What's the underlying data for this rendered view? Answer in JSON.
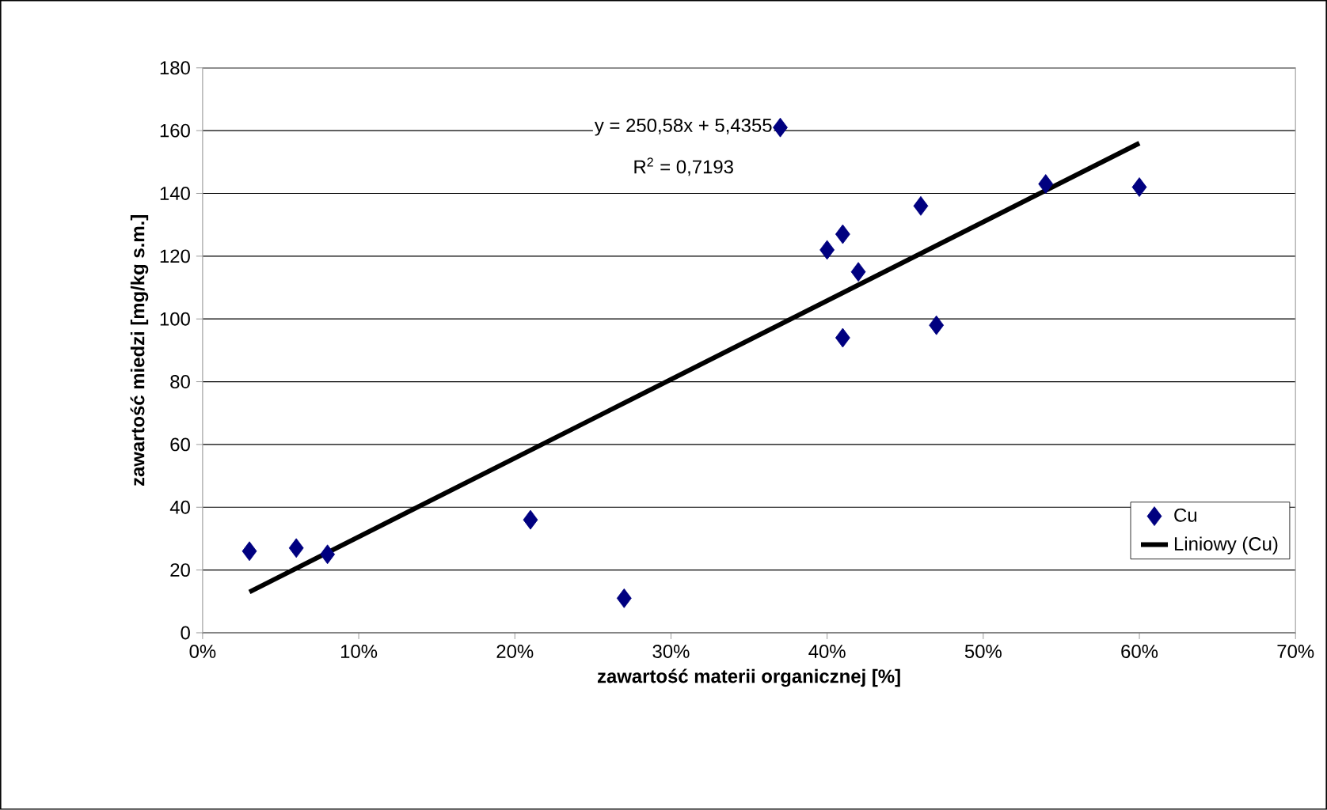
{
  "chart_data": {
    "type": "scatter",
    "xlabel": "zawartość materii organicznej [%]",
    "ylabel": "zawartość miedzi [mg/kg s.m.]",
    "xlim": [
      0,
      70
    ],
    "ylim": [
      0,
      180
    ],
    "xticks": [
      {
        "value": 0,
        "label": "0%"
      },
      {
        "value": 10,
        "label": "10%"
      },
      {
        "value": 20,
        "label": "20%"
      },
      {
        "value": 30,
        "label": "30%"
      },
      {
        "value": 40,
        "label": "40%"
      },
      {
        "value": 50,
        "label": "50%"
      },
      {
        "value": 60,
        "label": "60%"
      },
      {
        "value": 70,
        "label": "70%"
      }
    ],
    "yticks": [
      0,
      20,
      40,
      60,
      80,
      100,
      120,
      140,
      160,
      180
    ],
    "grid": "y",
    "legend": "bottom right",
    "series": [
      {
        "name": "Cu",
        "marker": "diamond",
        "color": "#000080",
        "x": [
          3,
          6,
          8,
          21,
          27,
          37,
          40,
          41,
          42,
          41,
          46,
          47,
          54,
          60
        ],
        "values": [
          26,
          27,
          25,
          36,
          11,
          161,
          122,
          127,
          115,
          94,
          136,
          98,
          143,
          142
        ]
      },
      {
        "name": "Liniowy (Cu)",
        "type": "line",
        "marker": "none",
        "line_style": "solid",
        "color": "#000000",
        "x": [
          3,
          60
        ],
        "values": [
          13,
          156
        ]
      }
    ],
    "annotations": [
      "y = 250,58x + 5,4355",
      "R$^{2}$ = 0,7193"
    ]
  }
}
